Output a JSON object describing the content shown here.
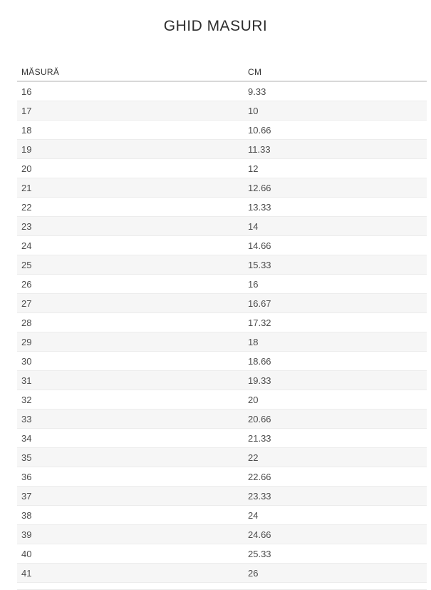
{
  "page": {
    "title": "GHID MASURI"
  },
  "table": {
    "columns": [
      "MĂSURĂ",
      "CM"
    ],
    "rows": [
      [
        "16",
        "9.33"
      ],
      [
        "17",
        "10"
      ],
      [
        "18",
        "10.66"
      ],
      [
        "19",
        "11.33"
      ],
      [
        "20",
        "12"
      ],
      [
        "21",
        "12.66"
      ],
      [
        "22",
        "13.33"
      ],
      [
        "23",
        "14"
      ],
      [
        "24",
        "14.66"
      ],
      [
        "25",
        "15.33"
      ],
      [
        "26",
        "16"
      ],
      [
        "27",
        "16.67"
      ],
      [
        "28",
        "17.32"
      ],
      [
        "29",
        "18"
      ],
      [
        "30",
        "18.66"
      ],
      [
        "31",
        "19.33"
      ],
      [
        "32",
        "20"
      ],
      [
        "33",
        "20.66"
      ],
      [
        "34",
        "21.33"
      ],
      [
        "35",
        "22"
      ],
      [
        "36",
        "22.66"
      ],
      [
        "37",
        "23.33"
      ],
      [
        "38",
        "24"
      ],
      [
        "39",
        "24.66"
      ],
      [
        "40",
        "25.33"
      ],
      [
        "41",
        "26"
      ]
    ]
  },
  "colors": {
    "alt_row_background": "#f6f6f6",
    "header_border": "#d8d8d8",
    "row_border": "#ececec",
    "cell_text": "#4d4d4d",
    "title_text": "#2e2e2e"
  }
}
